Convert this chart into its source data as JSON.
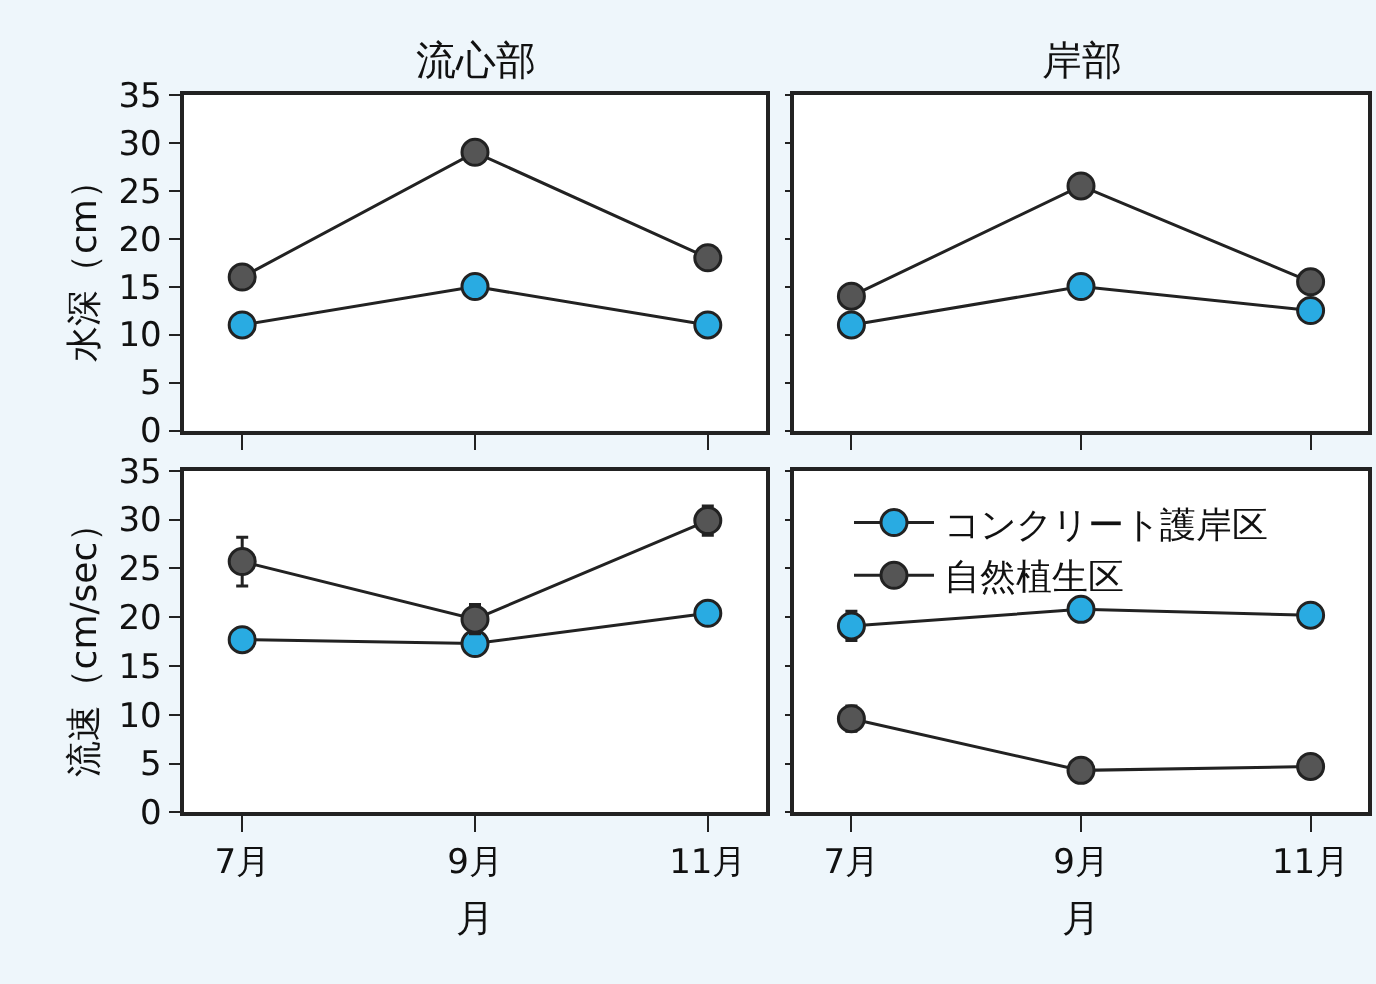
{
  "chart_data": [
    {
      "type": "line",
      "title": "流心部",
      "ylabel": "水深（cm）",
      "categories": [
        "7月",
        "9月",
        "11月"
      ],
      "marker": "circle",
      "legend": false,
      "tick_labels": "y",
      "ylim": [
        0,
        35
      ],
      "yticks": [
        0,
        5,
        10,
        15,
        20,
        25,
        30,
        35
      ],
      "series": [
        {
          "color": "#29abe2",
          "values": [
            11,
            15,
            11
          ]
        },
        {
          "color": "#555555",
          "values": [
            16,
            29,
            18
          ]
        }
      ]
    },
    {
      "type": "line",
      "title": "岸部",
      "categories": [
        "7月",
        "9月",
        "11月"
      ],
      "marker": "circle",
      "legend": false,
      "tick_labels": false,
      "ylim": [
        0,
        35
      ],
      "yticks": [
        {
          "value": 0,
          "label": null
        },
        {
          "value": 5,
          "label": null
        },
        {
          "value": 10,
          "label": null
        },
        {
          "value": 15,
          "label": null
        },
        {
          "value": 20,
          "label": null
        },
        {
          "value": 25,
          "label": null
        },
        {
          "value": 30,
          "label": null
        },
        {
          "value": 35,
          "label": null
        }
      ],
      "series": [
        {
          "color": "#29abe2",
          "values": [
            11,
            15,
            12.5
          ]
        },
        {
          "color": "#555555",
          "values": [
            14,
            25.5,
            15.5
          ]
        }
      ]
    },
    {
      "type": "line",
      "ylabel": "流速（cm/sec）",
      "xlabel": "月",
      "categories": [
        "7月",
        "9月",
        "11月"
      ],
      "marker": "circle",
      "legend": false,
      "ylim": [
        0,
        35
      ],
      "yticks": [
        0,
        5,
        10,
        15,
        20,
        25,
        30,
        35
      ],
      "series": [
        {
          "color": "#29abe2",
          "values": [
            17.7,
            17.3,
            20.4
          ]
        },
        {
          "color": "#555555",
          "values": [
            25.7,
            19.8,
            29.9
          ],
          "errors": [
            2.5,
            1.5,
            1.5
          ]
        }
      ]
    },
    {
      "type": "line",
      "xlabel": "月",
      "categories": [
        "7月",
        "9月",
        "11月"
      ],
      "marker": "circle",
      "legend": "top",
      "tick_labels": "x",
      "ylim": [
        0,
        35
      ],
      "yticks": [
        {
          "value": 0,
          "label": null
        },
        {
          "value": 5,
          "label": null
        },
        {
          "value": 10,
          "label": null
        },
        {
          "value": 15,
          "label": null
        },
        {
          "value": 20,
          "label": null
        },
        {
          "value": 25,
          "label": null
        },
        {
          "value": 30,
          "label": null
        },
        {
          "value": 35,
          "label": null
        }
      ],
      "series": [
        {
          "name": "コンクリート護岸区",
          "color": "#29abe2",
          "values": [
            19.1,
            20.8,
            20.2
          ],
          "errors": [
            1.5,
            null,
            null
          ]
        },
        {
          "name": "自然植生区",
          "color": "#555555",
          "values": [
            9.6,
            4.3,
            4.7
          ],
          "errors": [
            1.3,
            null,
            null
          ]
        }
      ]
    }
  ]
}
